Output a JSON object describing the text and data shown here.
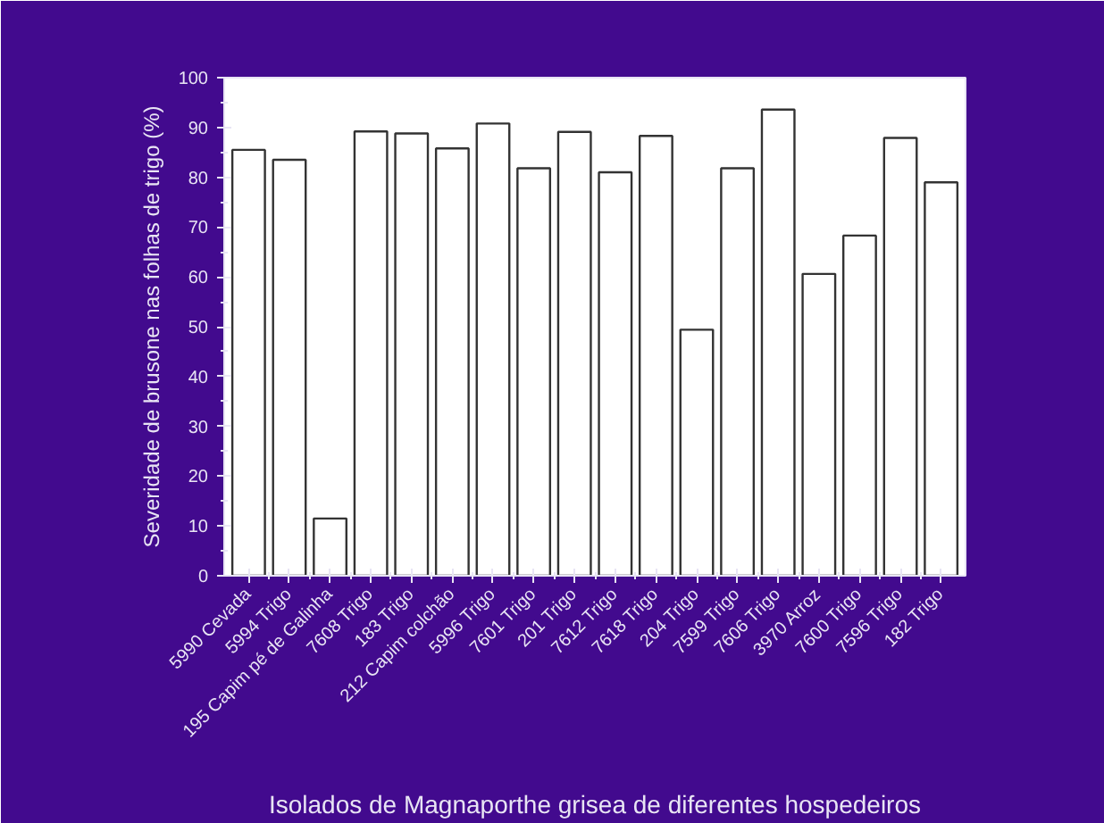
{
  "chart_data": {
    "type": "bar",
    "ylabel": "Severidade de brusone nas folhas de trigo (%)",
    "xlabel": "Isolados de Magnaporthe grisea de diferentes hospedeiros",
    "categories": [
      "5990 Cevada",
      "5994 Trigo",
      "195 Capim pé de Galinha",
      "7608 Trigo",
      "183 Trigo",
      "212 Capim colchão",
      "5996 Trigo",
      "7601 Trigo",
      "201 Trigo",
      "7612 Trigo",
      "7618 Trigo",
      "204 Trigo",
      "7599 Trigo",
      "7606 Trigo",
      "3970 Arroz",
      "7600 Trigo",
      "7596 Trigo",
      "182 Trigo"
    ],
    "values": [
      85.5,
      83.5,
      11.5,
      89.2,
      88.8,
      85.8,
      90.8,
      81.8,
      89.1,
      81.0,
      88.3,
      49.4,
      81.8,
      93.6,
      60.6,
      68.3,
      87.9,
      79.0
    ],
    "color": "#ffffff",
    "ylim": [
      0,
      100
    ],
    "yticks": [
      0,
      10,
      20,
      30,
      40,
      50,
      60,
      70,
      80,
      90,
      100
    ],
    "grid": false
  }
}
